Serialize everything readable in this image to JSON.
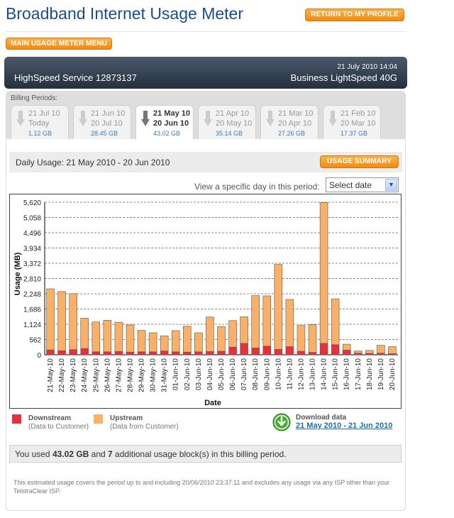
{
  "page": {
    "title": "Broadband Internet Usage Meter",
    "return_button": "RETURN TO MY PROFILE",
    "menu_button": "MAIN USAGE METER MENU"
  },
  "service": {
    "datetime": "21 July 2010 14:04",
    "name": "HighSpeed Service 12873137",
    "plan": "Business LightSpeed 40G"
  },
  "billing": {
    "label": "Billing Periods:",
    "tabs": [
      {
        "line1": "21 Jul 10",
        "line2": "Today",
        "usage": "1.12 GB",
        "active": false
      },
      {
        "line1": "21 Jun 10",
        "line2": "20 Jul 10",
        "usage": "28.45 GB",
        "active": false
      },
      {
        "line1": "21 May 10",
        "line2": "20 Jun 10",
        "usage": "43.02 GB",
        "active": true
      },
      {
        "line1": "21 Apr 10",
        "line2": "20 May 10",
        "usage": "35.14 GB",
        "active": false
      },
      {
        "line1": "21 Mar 10",
        "line2": "20 Apr 10",
        "usage": "27.26 GB",
        "active": false
      },
      {
        "line1": "21 Feb 10",
        "line2": "20 Mar 10",
        "usage": "17.37 GB",
        "active": false
      }
    ]
  },
  "daily": {
    "title": "Daily Usage: 21 May 2010 - 20 Jun 2010",
    "summary_button": "USAGE SUMMARY",
    "view_label": "View a specific day in this period:",
    "select_value": "Select date"
  },
  "chart_data": {
    "type": "bar",
    "stacked": true,
    "xlabel": "Date",
    "ylabel": "Usage (MB)",
    "ylim": [
      0,
      5620
    ],
    "yticks": [
      "0",
      "562",
      "1,124",
      "1,686",
      "2,248",
      "2,810",
      "3,372",
      "3,934",
      "4,496",
      "5,058",
      "5,620"
    ],
    "grid": true,
    "categories": [
      "21-May-10",
      "22-May-10",
      "23-May-10",
      "24-May-10",
      "25-May-10",
      "26-May-10",
      "27-May-10",
      "28-May-10",
      "29-May-10",
      "30-May-10",
      "31-May-10",
      "01-Jun-10",
      "02-Jun-10",
      "03-Jun-10",
      "04-Jun-10",
      "05-Jun-10",
      "06-Jun-10",
      "07-Jun-10",
      "08-Jun-10",
      "09-Jun-10",
      "10-Jun-10",
      "11-Jun-10",
      "12-Jun-10",
      "13-Jun-10",
      "14-Jun-10",
      "15-Jun-10",
      "16-Jun-10",
      "17-Jun-10",
      "18-Jun-10",
      "19-Jun-10",
      "20-Jun-10"
    ],
    "series": [
      {
        "name": "Downstream",
        "color": "#e8303a",
        "values": [
          180,
          150,
          190,
          230,
          110,
          110,
          120,
          100,
          110,
          110,
          140,
          110,
          100,
          110,
          120,
          130,
          280,
          420,
          250,
          320,
          200,
          300,
          130,
          90,
          420,
          370,
          170,
          60,
          50,
          60,
          40
        ]
      },
      {
        "name": "Upstream",
        "color": "#fab067",
        "values": [
          2250,
          2180,
          2060,
          1120,
          1100,
          1160,
          1080,
          1000,
          790,
          700,
          560,
          780,
          950,
          700,
          1270,
          910,
          980,
          980,
          1930,
          1850,
          3130,
          1740,
          950,
          1020,
          5190,
          1690,
          220,
          80,
          110,
          290,
          260
        ]
      }
    ]
  },
  "legend": {
    "downstream_title": "Downstream",
    "downstream_sub": "(Data to Customer)",
    "upstream_title": "Upstream",
    "upstream_sub": "(Data from Customer)",
    "download_title": "Download data",
    "download_link": "21 May 2010 - 21 Jun 2010"
  },
  "summary": {
    "prefix": "You used ",
    "total": "43.02 GB",
    "middle": " and ",
    "blocks": "7",
    "suffix": " additional usage block(s) in this billing period."
  },
  "footer": {
    "note": "This estimated usage covers the period up to and including 20/06/2010 23:37:11 and excludes any usage via any ISP other than your TelstraClear ISP."
  },
  "colors": {
    "title": "#1a4d8f",
    "button_orange": "#f08a10",
    "downstream": "#e8303a",
    "upstream": "#fab067",
    "link": "#1a6fb0"
  }
}
